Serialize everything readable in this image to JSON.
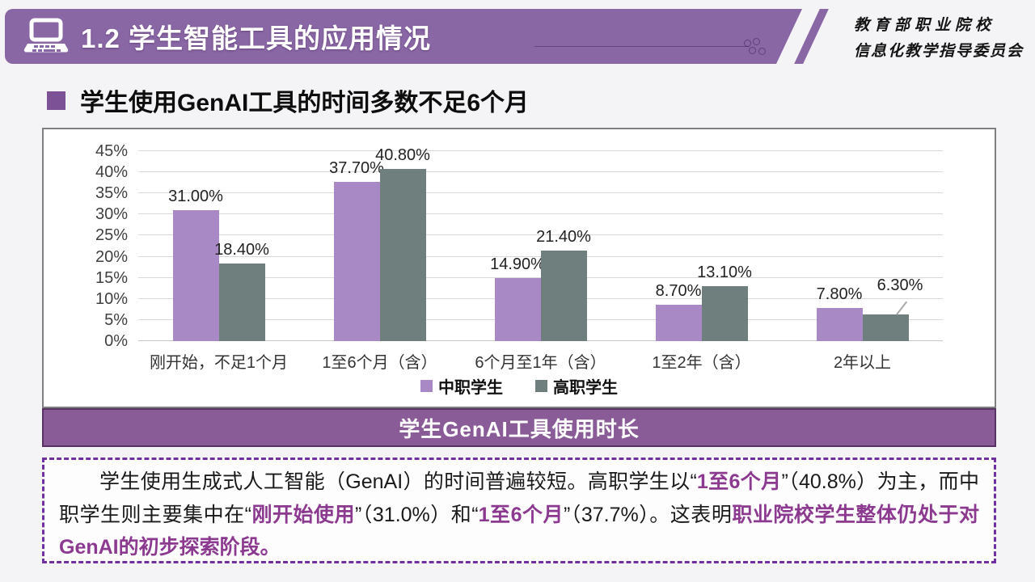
{
  "header": {
    "title": "1.2 学生智能工具的应用情况",
    "org_line1": "教育部职业院校",
    "org_line2": "信息化教学指导委员会"
  },
  "section": {
    "heading": "学生使用GenAI工具的时间多数不足6个月"
  },
  "chart_data": {
    "type": "bar",
    "title": "学生GenAI工具使用时长",
    "categories": [
      "刚开始，不足1个月",
      "1至6个月（含）",
      "6个月至1年（含）",
      "1至2年（含）",
      "2年以上"
    ],
    "series": [
      {
        "name": "中职学生",
        "color": "#a889c5",
        "values": [
          31.0,
          37.7,
          14.9,
          8.7,
          7.8
        ],
        "labels": [
          "31.00%",
          "37.70%",
          "14.90%",
          "8.70%",
          "7.80%"
        ]
      },
      {
        "name": "高职学生",
        "color": "#6e7f7e",
        "values": [
          18.4,
          40.8,
          21.4,
          13.1,
          6.3
        ],
        "labels": [
          "18.40%",
          "40.80%",
          "21.40%",
          "13.10%",
          "6.30%"
        ]
      }
    ],
    "ylim": [
      0,
      45
    ],
    "ytick_labels": [
      "0%",
      "5%",
      "10%",
      "15%",
      "20%",
      "25%",
      "30%",
      "35%",
      "40%",
      "45%"
    ],
    "grid": true,
    "legend_position": "bottom",
    "value_label_callout": {
      "series": 1,
      "category": 4
    }
  },
  "analysis": {
    "segments": [
      {
        "text": "学生使用生成式人工智能（GenAI）的时间普遍较短。高职学生以“",
        "style": "normal"
      },
      {
        "text": "1至6个月",
        "style": "em"
      },
      {
        "text": "”（40.8%）为主，而中职学生则主要集中在“",
        "style": "normal"
      },
      {
        "text": "刚开始使用",
        "style": "em"
      },
      {
        "text": "”（31.0%）和“",
        "style": "normal"
      },
      {
        "text": "1至6个月",
        "style": "em"
      },
      {
        "text": "”（37.7%）。这表明",
        "style": "normal"
      },
      {
        "text": "职业院校学生整体仍处于对GenAI的初步探索阶段。",
        "style": "em"
      }
    ]
  },
  "colors": {
    "header_purple": "#8966a4",
    "title_bar_purple": "#8a5c97",
    "bar_purple": "#a889c5",
    "bar_gray": "#6e7f7e",
    "emphasis_text": "#8c3a90",
    "box_border": "#7030a0"
  }
}
